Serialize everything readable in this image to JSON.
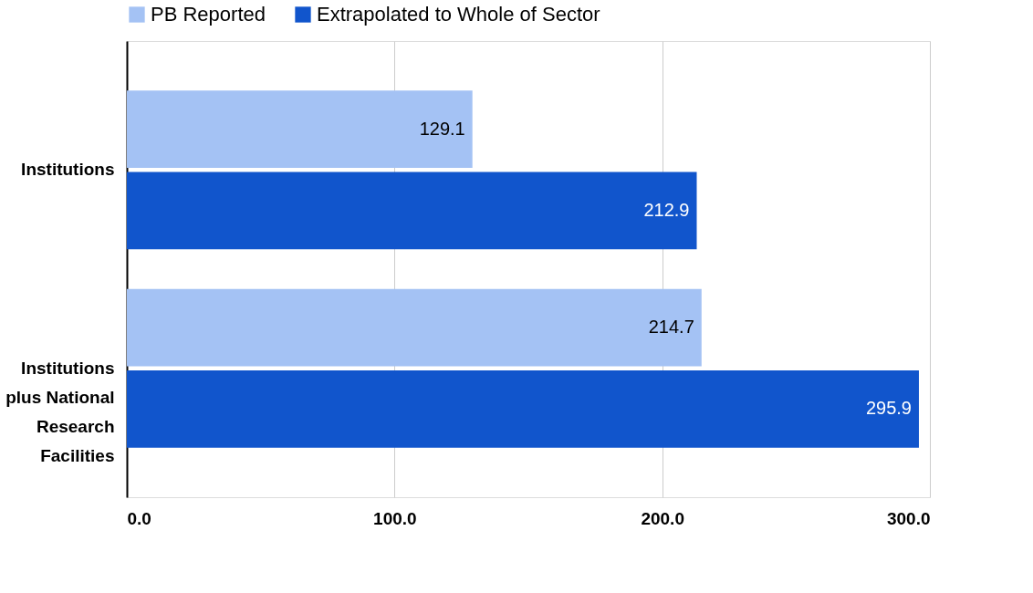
{
  "chart_data": {
    "type": "bar",
    "orientation": "horizontal",
    "categories": [
      "Institutions",
      "Institutions plus National Research Facilities"
    ],
    "series": [
      {
        "name": "PB Reported",
        "color": "#a4c2f4",
        "values": [
          129.1,
          214.7
        ]
      },
      {
        "name": "Extrapolated to Whole of Sector",
        "color": "#1155cc",
        "values": [
          212.9,
          295.9
        ]
      }
    ],
    "xlim": [
      0,
      300
    ],
    "xticks": [
      {
        "value": 0,
        "label": "0.0"
      },
      {
        "value": 100,
        "label": "100.0"
      },
      {
        "value": 200,
        "label": "200.0"
      },
      {
        "value": 300,
        "label": "300.0"
      }
    ],
    "grid": "x",
    "legend": "top",
    "data_labels": true
  }
}
